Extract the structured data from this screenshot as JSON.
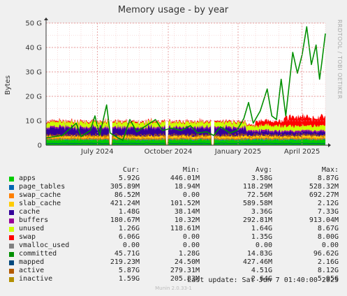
{
  "chart_data": {
    "type": "area",
    "title": "Memory usage - by year",
    "ylabel": "Bytes",
    "ylim": [
      0,
      50
    ],
    "y_ticks": [
      {
        "value": 0,
        "label": "0"
      },
      {
        "value": 10,
        "label": "10 G"
      },
      {
        "value": 20,
        "label": "20 G"
      },
      {
        "value": 30,
        "label": "30 G"
      },
      {
        "value": 40,
        "label": "40 G"
      },
      {
        "value": 50,
        "label": "50 G"
      }
    ],
    "x_range_months": [
      0,
      12
    ],
    "x_ticks": [
      {
        "pos": 2.2,
        "label": "July 2024"
      },
      {
        "pos": 5.25,
        "label": "October 2024"
      },
      {
        "pos": 8.25,
        "label": "January 2025"
      },
      {
        "pos": 11.0,
        "label": "April 2025"
      }
    ],
    "grid": true,
    "side_text": "RRDTOOL / TOBI OETIKER",
    "series": [
      {
        "name": "apps",
        "color": "#00cc00"
      },
      {
        "name": "page_tables",
        "color": "#0066b3"
      },
      {
        "name": "swap_cache",
        "color": "#ff8000"
      },
      {
        "name": "slab_cache",
        "color": "#ffcc00"
      },
      {
        "name": "cache",
        "color": "#330099"
      },
      {
        "name": "buffers",
        "color": "#990099"
      },
      {
        "name": "unused",
        "color": "#ccff00"
      },
      {
        "name": "swap",
        "color": "#ff0000"
      },
      {
        "name": "vmalloc_used",
        "color": "#808080"
      },
      {
        "name": "committed",
        "color": "#008f00"
      },
      {
        "name": "mapped",
        "color": "#00487d"
      },
      {
        "name": "active",
        "color": "#b35a00"
      },
      {
        "name": "inactive",
        "color": "#b38f00"
      }
    ],
    "committed_series": [
      {
        "x": 0.0,
        "y": 3.0
      },
      {
        "x": 0.7,
        "y": 4.0
      },
      {
        "x": 1.3,
        "y": 9.0
      },
      {
        "x": 1.5,
        "y": 3.5
      },
      {
        "x": 1.9,
        "y": 6.0
      },
      {
        "x": 2.1,
        "y": 12.0
      },
      {
        "x": 2.3,
        "y": 4.0
      },
      {
        "x": 2.6,
        "y": 16.5
      },
      {
        "x": 2.75,
        "y": 5.0
      },
      {
        "x": 3.0,
        "y": 3.5
      },
      {
        "x": 3.3,
        "y": 2.0
      },
      {
        "x": 3.6,
        "y": 10.5
      },
      {
        "x": 3.9,
        "y": 5.5
      },
      {
        "x": 4.3,
        "y": 8.0
      },
      {
        "x": 4.7,
        "y": 10.5
      },
      {
        "x": 5.0,
        "y": 6.0
      },
      {
        "x": 5.4,
        "y": 7.0
      },
      {
        "x": 5.8,
        "y": 6.0
      },
      {
        "x": 6.2,
        "y": 8.0
      },
      {
        "x": 6.5,
        "y": 5.0
      },
      {
        "x": 6.9,
        "y": 5.5
      },
      {
        "x": 7.2,
        "y": 4.0
      },
      {
        "x": 7.5,
        "y": 7.5
      },
      {
        "x": 7.9,
        "y": 5.0
      },
      {
        "x": 8.2,
        "y": 6.0
      },
      {
        "x": 8.5,
        "y": 11.0
      },
      {
        "x": 8.7,
        "y": 17.5
      },
      {
        "x": 8.9,
        "y": 9.0
      },
      {
        "x": 9.2,
        "y": 14.0
      },
      {
        "x": 9.5,
        "y": 23.0
      },
      {
        "x": 9.7,
        "y": 12.0
      },
      {
        "x": 9.9,
        "y": 10.5
      },
      {
        "x": 10.1,
        "y": 27.0
      },
      {
        "x": 10.3,
        "y": 12.0
      },
      {
        "x": 10.6,
        "y": 38.0
      },
      {
        "x": 10.8,
        "y": 29.5
      },
      {
        "x": 11.0,
        "y": 37.0
      },
      {
        "x": 11.2,
        "y": 48.5
      },
      {
        "x": 11.4,
        "y": 33.0
      },
      {
        "x": 11.6,
        "y": 41.0
      },
      {
        "x": 11.75,
        "y": 27.0
      },
      {
        "x": 11.85,
        "y": 34.0
      },
      {
        "x": 12.0,
        "y": 45.7
      }
    ]
  },
  "legend": {
    "headers": {
      "cur": "Cur:",
      "min": "Min:",
      "avg": "Avg:",
      "max": "Max:"
    },
    "rows": [
      {
        "name": "apps",
        "color": "#00cc00",
        "cur": "5.92G",
        "min": "446.01M",
        "avg": "3.58G",
        "max": "8.87G"
      },
      {
        "name": "page_tables",
        "color": "#0066b3",
        "cur": "305.89M",
        "min": "18.94M",
        "avg": "118.29M",
        "max": "528.32M"
      },
      {
        "name": "swap_cache",
        "color": "#ff8000",
        "cur": "86.52M",
        "min": "0.00",
        "avg": "72.56M",
        "max": "692.27M"
      },
      {
        "name": "slab_cache",
        "color": "#ffcc00",
        "cur": "421.24M",
        "min": "101.52M",
        "avg": "589.58M",
        "max": "2.12G"
      },
      {
        "name": "cache",
        "color": "#330099",
        "cur": "1.48G",
        "min": "38.14M",
        "avg": "3.36G",
        "max": "7.33G"
      },
      {
        "name": "buffers",
        "color": "#990099",
        "cur": "180.67M",
        "min": "10.32M",
        "avg": "292.81M",
        "max": "913.04M"
      },
      {
        "name": "unused",
        "color": "#ccff00",
        "cur": "1.26G",
        "min": "118.61M",
        "avg": "1.64G",
        "max": "8.67G"
      },
      {
        "name": "swap",
        "color": "#ff0000",
        "cur": "6.06G",
        "min": "0.00",
        "avg": "1.35G",
        "max": "8.00G"
      },
      {
        "name": "vmalloc_used",
        "color": "#808080",
        "cur": "0.00",
        "min": "0.00",
        "avg": "0.00",
        "max": "0.00"
      },
      {
        "name": "committed",
        "color": "#008f00",
        "cur": "45.71G",
        "min": "1.28G",
        "avg": "14.83G",
        "max": "96.62G"
      },
      {
        "name": "mapped",
        "color": "#00487d",
        "cur": "219.23M",
        "min": "24.50M",
        "avg": "427.46M",
        "max": "2.16G"
      },
      {
        "name": "active",
        "color": "#b35a00",
        "cur": "5.87G",
        "min": "279.31M",
        "avg": "4.51G",
        "max": "8.12G"
      },
      {
        "name": "inactive",
        "color": "#b38f00",
        "cur": "1.59G",
        "min": "205.83M",
        "avg": "2.64G",
        "max": "5.95G"
      }
    ]
  },
  "footer": {
    "last_update": "Last update:  Sat Jun  7 01:40:00 2025",
    "version": "Munin 2.0.33-1"
  }
}
